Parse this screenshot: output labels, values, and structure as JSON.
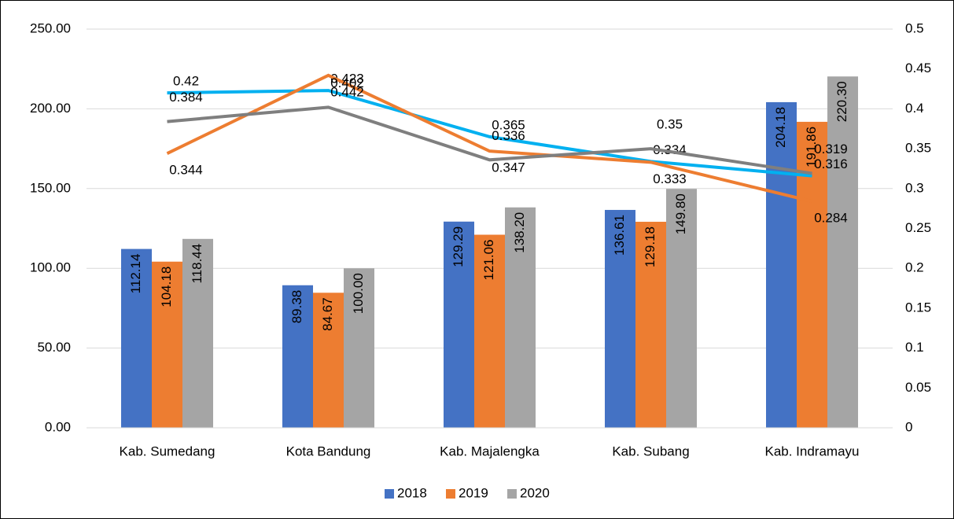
{
  "chart_data": {
    "type": "bar-line",
    "categories": [
      "Kab. Sumedang",
      "Kota Bandung",
      "Kab. Majalengka",
      "Kab. Subang",
      "Kab. Indramayu"
    ],
    "series": [
      {
        "name": "2018",
        "color": "#4472c4",
        "type": "bar",
        "values": [
          112.14,
          89.38,
          129.29,
          136.61,
          204.18
        ],
        "value_labels": [
          "112.14",
          "89.38",
          "129.29",
          "136.61",
          "204.18"
        ]
      },
      {
        "name": "2019",
        "color": "#ed7d31",
        "type": "bar",
        "values": [
          104.18,
          84.67,
          121.06,
          129.18,
          191.86
        ],
        "value_labels": [
          "104.18",
          "84.67",
          "121.06",
          "129.18",
          "191.86"
        ]
      },
      {
        "name": "2020",
        "color": "#a5a5a5",
        "type": "bar",
        "values": [
          118.44,
          100.0,
          138.2,
          149.8,
          220.3
        ],
        "value_labels": [
          "118.44",
          "100.00",
          "138.20",
          "149.80",
          "220.30"
        ]
      },
      {
        "color": "#00b0f0",
        "type": "line",
        "axis": "y2",
        "values": [
          0.42,
          0.423,
          0.365,
          0.334,
          0.316
        ]
      },
      {
        "color": "#ed7d31",
        "type": "line",
        "axis": "y2",
        "values": [
          0.344,
          0.442,
          0.347,
          0.333,
          0.284
        ]
      },
      {
        "color": "#7f7f7f",
        "type": "line",
        "axis": "y2",
        "values": [
          0.384,
          0.402,
          0.336,
          0.35,
          0.319
        ]
      }
    ],
    "ylim": [
      0,
      250
    ],
    "yticks": [
      {
        "value": 0,
        "label": "0.00"
      },
      {
        "value": 50,
        "label": "50.00"
      },
      {
        "value": 100,
        "label": "100.00"
      },
      {
        "value": 150,
        "label": "150.00"
      },
      {
        "value": 200,
        "label": "200.00"
      },
      {
        "value": 250,
        "label": "250.00"
      }
    ],
    "y2lim": [
      0,
      0.5
    ],
    "y2ticks": [
      0,
      0.05,
      0.1,
      0.15,
      0.2,
      0.25,
      0.3,
      0.35,
      0.4,
      0.45,
      0.5
    ],
    "grid": true,
    "legend": "bottom"
  }
}
